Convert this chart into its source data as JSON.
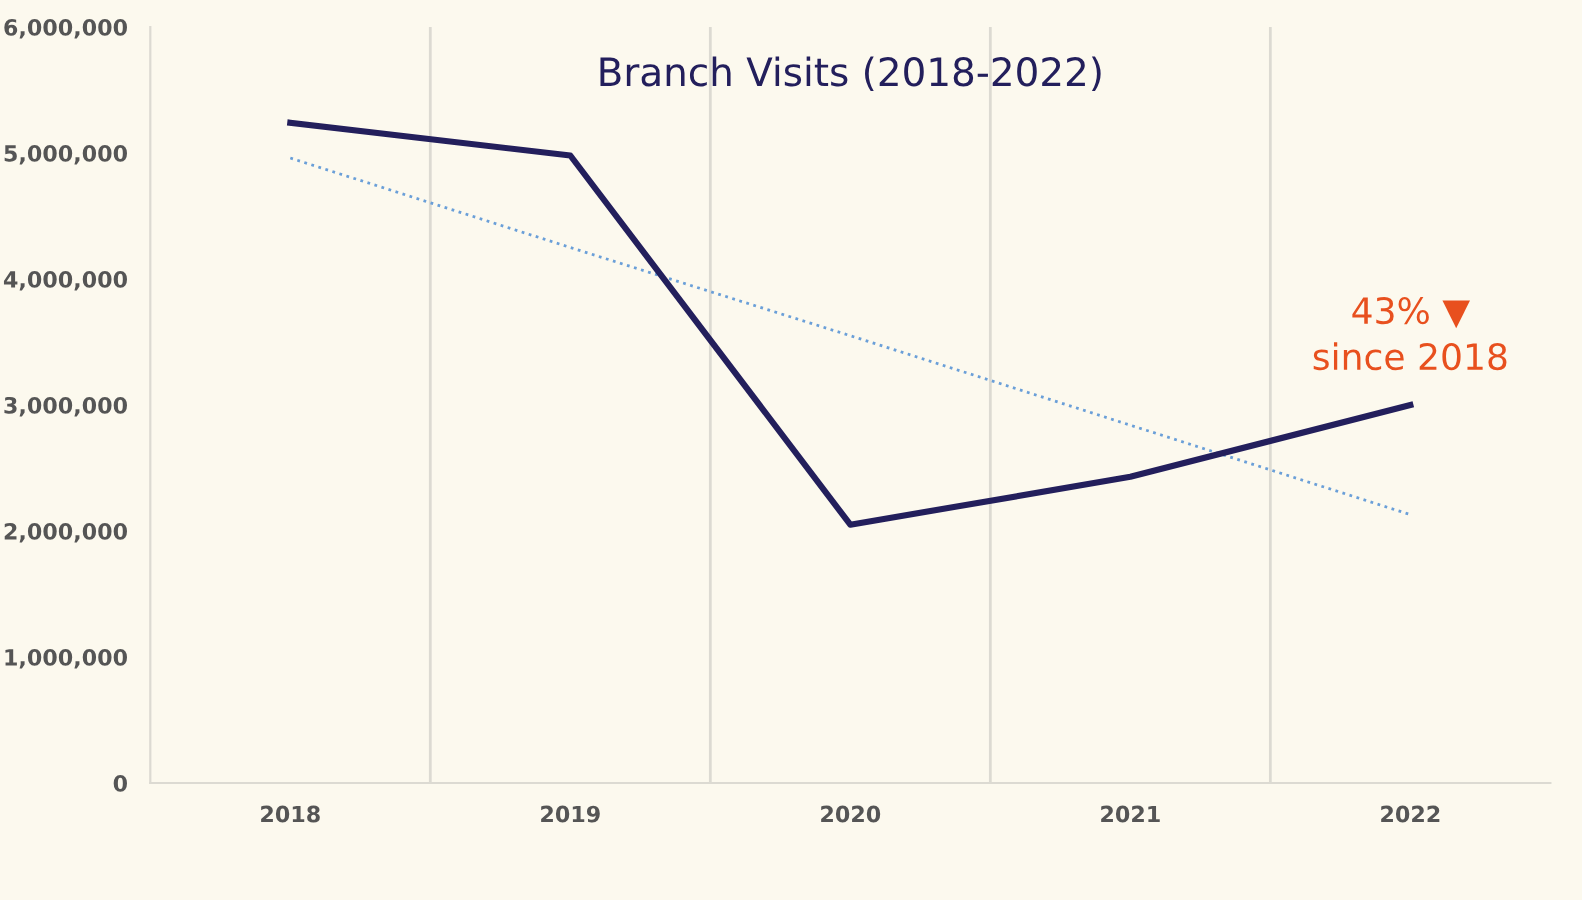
{
  "chart_data": {
    "type": "line",
    "title": "Branch Visits (2018-2022)",
    "categories": [
      "2018",
      "2019",
      "2020",
      "2021",
      "2022"
    ],
    "series": [
      {
        "color": "#231f5c",
        "values": [
          5240000,
          4980000,
          2050000,
          2430000,
          3000000
        ]
      },
      {
        "type": "line",
        "color": "#6a9fd8",
        "line_style": "dotted",
        "values": [
          4960000,
          4250000,
          3550000,
          2840000,
          2130000
        ]
      }
    ],
    "ylim": [
      0,
      6000000
    ],
    "yticks": [
      0,
      {
        "value": 1000000,
        "label": "1,000,000"
      },
      {
        "value": 2000000,
        "label": "2,000,000"
      },
      {
        "value": 3000000,
        "label": "3,000,000"
      },
      {
        "value": 4000000,
        "label": "4,000,000"
      },
      {
        "value": 5000000,
        "label": "5,000,000"
      },
      {
        "value": 6000000,
        "label": "6,000,000"
      }
    ],
    "grid": "x",
    "annotations": [
      {
        "text": "43% ▼\nsince 2018",
        "x": "2022",
        "y": 3000000
      }
    ]
  }
}
